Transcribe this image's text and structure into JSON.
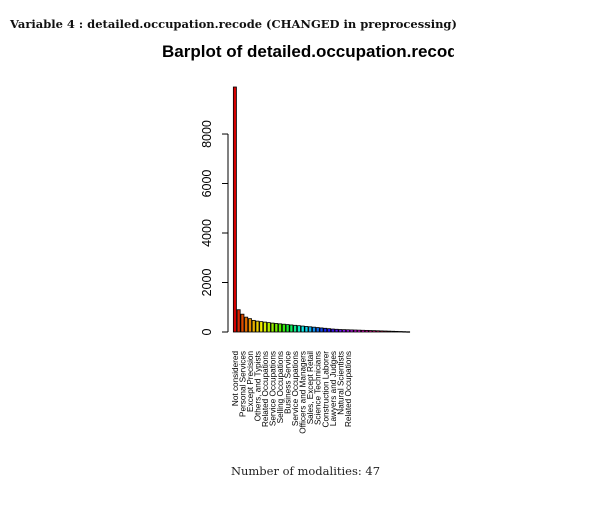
{
  "header": {
    "variable_line": "Variable 4 :  detailed.occupation.recode (CHANGED in preprocessing)"
  },
  "footer": {
    "modalities_text": "Number of modalities: 47"
  },
  "chart_data": {
    "type": "bar",
    "title": "Barplot of detailed.occupation.recode",
    "xlabel": "",
    "ylabel": "",
    "ylim": [
      0,
      10000
    ],
    "yticks": [
      0,
      2000,
      4000,
      6000,
      8000
    ],
    "grid": false,
    "legend": "none",
    "categories": [
      "Not considered",
      "",
      "Personal Services",
      "",
      "Except Precision",
      "",
      "Others, and Typists",
      "",
      "Related Occupations",
      "",
      "Service Occupations",
      "",
      "Selling Occupations",
      "",
      "Business Service",
      "",
      "Service Occupations",
      "",
      "Officers and Managers",
      "",
      "Sales, Except Retail",
      "",
      "Science Technicians",
      "",
      "Construction Laborer",
      "",
      "Lawyers and Judges",
      "",
      "Natural Scientists",
      "",
      "Related Occupations",
      "",
      "",
      "",
      "",
      "",
      "",
      "",
      "",
      "",
      "",
      "",
      "",
      "",
      "",
      "",
      ""
    ],
    "values": [
      9900,
      900,
      720,
      600,
      540,
      470,
      440,
      420,
      400,
      380,
      360,
      345,
      330,
      315,
      300,
      285,
      270,
      255,
      240,
      225,
      210,
      195,
      180,
      165,
      150,
      135,
      120,
      110,
      100,
      95,
      90,
      85,
      80,
      75,
      70,
      65,
      60,
      55,
      50,
      45,
      40,
      35,
      30,
      25,
      20,
      15,
      10
    ],
    "colors": [
      "#d40000",
      "#d82400",
      "#dc4a00",
      "#e06c00",
      "#e48e00",
      "#e8b000",
      "#ecd000",
      "#f0ee00",
      "#d6ee00",
      "#b6ee00",
      "#96ee00",
      "#76ee00",
      "#56ee00",
      "#36ee10",
      "#1aee30",
      "#10ee60",
      "#10ee90",
      "#10eec0",
      "#10eee8",
      "#10d4ee",
      "#10b0ee",
      "#108cee",
      "#1068ee",
      "#1046ee",
      "#1024ee",
      "#2010ee",
      "#3a10ee",
      "#5410ee",
      "#6e10ee",
      "#8810ee",
      "#a210ee",
      "#bc10ee",
      "#d610ee",
      "#ee10ea",
      "#ee10d0",
      "#ee10b6",
      "#ee109c",
      "#ee1082",
      "#ee1068",
      "#ee104e",
      "#ee1034",
      "#ee101c",
      "#ee2018",
      "#ee3818",
      "#e84818",
      "#e05018",
      "#d85818"
    ]
  }
}
